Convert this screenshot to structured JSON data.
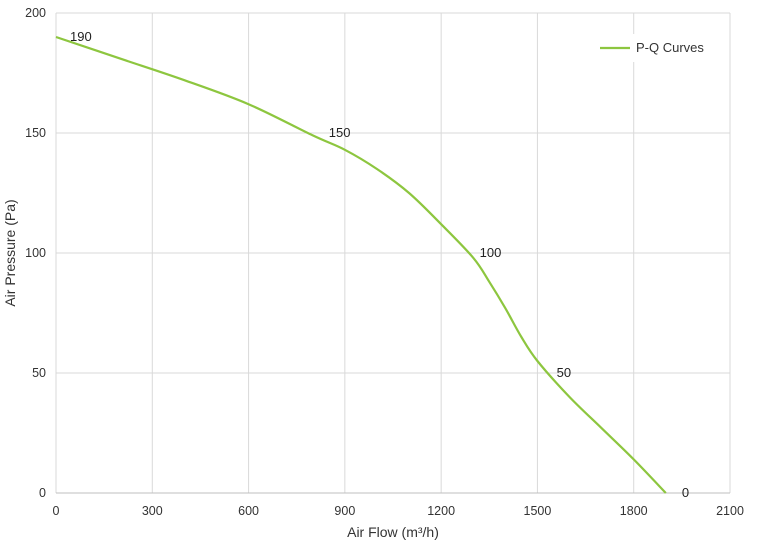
{
  "chart_data": {
    "type": "line",
    "xlabel": "Air Flow  (m³/h)",
    "ylabel": "Air Pressure  (Pa)",
    "xlim": [
      0,
      2100
    ],
    "ylim": [
      0,
      200
    ],
    "x_ticks": [
      "0",
      "300",
      "600",
      "900",
      "1200",
      "1500",
      "1800",
      "2100"
    ],
    "y_ticks": [
      "0",
      "50",
      "100",
      "150",
      "200"
    ],
    "grid": true,
    "legend_position": "top-right",
    "series": [
      {
        "name": "P-Q Curves",
        "color": "#8dc63f",
        "x": [
          0,
          200,
          400,
          600,
          800,
          900,
          1000,
          1100,
          1200,
          1300,
          1350,
          1400,
          1450,
          1500,
          1600,
          1700,
          1800,
          1900
        ],
        "y": [
          190,
          181,
          172,
          162,
          149,
          143,
          135,
          125,
          112,
          98,
          88,
          77,
          65,
          55,
          40,
          27,
          14,
          0
        ]
      }
    ],
    "annotations": [
      {
        "text": "190",
        "x": 0,
        "y": 190
      },
      {
        "text": "150",
        "x": 850,
        "y": 150
      },
      {
        "text": "100",
        "x": 1320,
        "y": 100
      },
      {
        "text": "50",
        "x": 1560,
        "y": 50
      },
      {
        "text": "0",
        "x": 1950,
        "y": 0
      }
    ]
  }
}
